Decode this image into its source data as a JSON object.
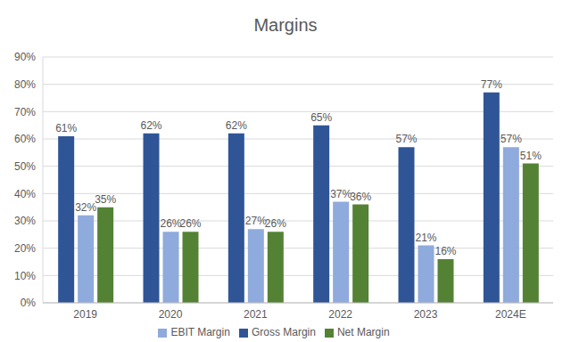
{
  "chart_data": {
    "type": "bar",
    "title": "Margins",
    "categories": [
      "2019",
      "2020",
      "2021",
      "2022",
      "2023",
      "2024E"
    ],
    "series": [
      {
        "name": "Gross Margin",
        "color": "#2f5597",
        "values": [
          61,
          62,
          62,
          65,
          57,
          77
        ],
        "value_labels": [
          "61%",
          "62%",
          "62%",
          "65%",
          "57%",
          "77%"
        ]
      },
      {
        "name": "EBIT Margin",
        "color": "#8faadc",
        "values": [
          32,
          26,
          27,
          37,
          21,
          57
        ],
        "value_labels": [
          "32%",
          "26%",
          "27%",
          "37%",
          "21%",
          "57%"
        ]
      },
      {
        "name": "Net Margin",
        "color": "#548235",
        "values": [
          35,
          26,
          26,
          36,
          16,
          51
        ],
        "value_labels": [
          "35%",
          "26%",
          "26%",
          "36%",
          "16%",
          "51%"
        ]
      }
    ],
    "ylim": [
      0,
      90
    ],
    "yticks": [
      {
        "value": 0,
        "label": "0%"
      },
      {
        "value": 10,
        "label": "10%"
      },
      {
        "value": 20,
        "label": "20%"
      },
      {
        "value": 30,
        "label": "30%"
      },
      {
        "value": 40,
        "label": "40%"
      },
      {
        "value": 50,
        "label": "50%"
      },
      {
        "value": 60,
        "label": "60%"
      },
      {
        "value": 70,
        "label": "70%"
      },
      {
        "value": 80,
        "label": "80%"
      },
      {
        "value": 90,
        "label": "90%"
      }
    ],
    "grid": true,
    "data_labels": true,
    "legend": "bottom"
  }
}
